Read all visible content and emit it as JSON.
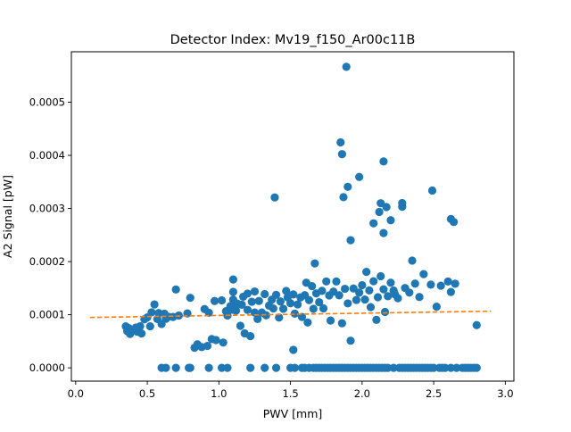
{
  "chart_data": {
    "type": "scatter",
    "title": "Detector Index: Mv19_f150_Ar00c11B",
    "xlabel": "PWV [mm]",
    "ylabel": "A2 Signal [pW]",
    "xlim": [
      -0.03,
      3.06
    ],
    "ylim": [
      -2.5e-05,
      0.000595
    ],
    "xticks": [
      0.0,
      0.5,
      1.0,
      1.5,
      2.0,
      2.5,
      3.0
    ],
    "xtick_labels": [
      "0.0",
      "0.5",
      "1.0",
      "1.5",
      "2.0",
      "2.5",
      "3.0"
    ],
    "yticks": [
      0.0,
      0.0001,
      0.0002,
      0.0003,
      0.0004,
      0.0005
    ],
    "ytick_labels": [
      "0.0000",
      "0.0001",
      "0.0002",
      "0.0003",
      "0.0004",
      "0.0005"
    ],
    "grid": false,
    "colors": {
      "points": "#1f77b4",
      "fit": "#ff7f0e"
    },
    "series": [
      {
        "kind": "points",
        "points": [
          [
            0.35,
            7.81e-05
          ],
          [
            0.36,
            6.91e-05
          ],
          [
            0.37,
            7.49e-05
          ],
          [
            0.38,
            6.39e-05
          ],
          [
            0.4,
            7.18e-05
          ],
          [
            0.42,
            7.58e-05
          ],
          [
            0.43,
            6.79e-05
          ],
          [
            0.45,
            7.84e-05
          ],
          [
            0.46,
            6.47e-05
          ],
          [
            0.48,
            9.14e-05
          ],
          [
            0.5,
            9.49e-05
          ],
          [
            0.52,
            7.82e-05
          ],
          [
            0.53,
            0.0001045
          ],
          [
            0.55,
            0.0001194
          ],
          [
            0.57,
            9.19e-05
          ],
          [
            0.58,
            0.0001032
          ],
          [
            0.6,
            8.26e-05
          ],
          [
            0.62,
            0.0001018
          ],
          [
            0.63,
            9.23e-05
          ],
          [
            0.65,
            9.61e-05
          ],
          [
            0.68,
            9.58e-05
          ],
          [
            0.7,
            0.0001475
          ],
          [
            0.72,
            9.86e-05
          ],
          [
            0.78,
            0.0001025
          ],
          [
            0.8,
            0.0001318
          ],
          [
            0.83,
            3.79e-05
          ],
          [
            0.85,
            4.44e-05
          ],
          [
            0.88,
            3.91e-05
          ],
          [
            0.9,
            0.0001107
          ],
          [
            0.92,
            4.13e-05
          ],
          [
            0.93,
            0.0001037
          ],
          [
            0.95,
            5.42e-05
          ],
          [
            0.97,
            0.0001258
          ],
          [
            0.98,
            5.23e-05
          ],
          [
            1.02,
            0.0001271
          ],
          [
            1.03,
            4.76e-05
          ],
          [
            1.05,
            0.0001067
          ],
          [
            1.06,
            9.86e-05
          ],
          [
            1.08,
            0.0001162
          ],
          [
            1.1,
            0.0001091
          ],
          [
            1.1,
            0.0001284
          ],
          [
            1.1,
            0.000143
          ],
          [
            1.1,
            0.0001664
          ],
          [
            1.12,
            0.0001077
          ],
          [
            1.13,
            0.0001208
          ],
          [
            1.15,
            7.92e-05
          ],
          [
            1.16,
            0.0001189
          ],
          [
            1.17,
            0.0001339
          ],
          [
            1.18,
            6.49e-05
          ],
          [
            1.2,
            0.0001091
          ],
          [
            1.2,
            0.0001398
          ],
          [
            1.22,
            5.96e-05
          ],
          [
            1.23,
            0.0001244
          ],
          [
            1.25,
            0.0001041
          ],
          [
            1.25,
            0.0001438
          ],
          [
            1.27,
            9.19e-05
          ],
          [
            1.28,
            0.0001259
          ],
          [
            1.3,
            0.0001041
          ],
          [
            1.32,
            0.0001389
          ],
          [
            1.33,
            9.89e-05
          ],
          [
            1.35,
            0.0001172
          ],
          [
            1.37,
            0.0001284
          ],
          [
            1.38,
            0.0001117
          ],
          [
            1.4,
            0.0001375
          ],
          [
            1.42,
            9.47e-05
          ],
          [
            1.43,
            0.000125
          ],
          [
            1.45,
            0.0001112
          ],
          [
            1.47,
            0.0001447
          ],
          [
            1.48,
            0.0001328
          ],
          [
            1.5,
            0.0001216
          ],
          [
            1.52,
            0.0001382
          ],
          [
            1.53,
            0.0001021
          ],
          [
            1.55,
            0.0001194
          ],
          [
            1.57,
            0.0001326
          ],
          [
            1.58,
            9.58e-05
          ],
          [
            1.6,
            0.0001367
          ],
          [
            1.61,
            0.0001603
          ],
          [
            1.62,
            8.54e-05
          ],
          [
            1.63,
            0.0001275
          ],
          [
            1.65,
            0.0001537
          ],
          [
            1.66,
            0.0001111
          ],
          [
            1.67,
            0.0001966
          ],
          [
            1.68,
            0.0001402
          ],
          [
            1.7,
            0.0001236
          ],
          [
            1.72,
            0.0001449
          ],
          [
            1.73,
            0.0001119
          ],
          [
            1.75,
            0.0001627
          ],
          [
            1.77,
            0.0001363
          ],
          [
            1.78,
            8.9e-05
          ],
          [
            1.8,
            0.0001434
          ],
          [
            1.82,
            0.0001626
          ],
          [
            1.84,
            0.0001365
          ],
          [
            1.86,
            8.39e-05
          ],
          [
            1.88,
            0.0001488
          ],
          [
            1.9,
            0.0001213
          ],
          [
            1.92,
            5.11e-05
          ],
          [
            1.94,
            0.0001494
          ],
          [
            1.96,
            0.0001278
          ],
          [
            1.98,
            0.0001416
          ],
          [
            2.0,
            0.0001557
          ],
          [
            2.02,
            0.0001286
          ],
          [
            2.03,
            0.0001806
          ],
          [
            2.05,
            0.0001457
          ],
          [
            2.06,
            0.0001142
          ],
          [
            2.08,
            0.0001631
          ],
          [
            2.1,
            9.04e-05
          ],
          [
            2.11,
            0.0001329
          ],
          [
            2.13,
            0.0001725
          ],
          [
            2.15,
            0.0001478
          ],
          [
            2.16,
            0.0001053
          ],
          [
            2.18,
            0.0001348
          ],
          [
            2.2,
            0.0001602
          ],
          [
            2.22,
            0.0001455
          ],
          [
            2.23,
            0.0001382
          ],
          [
            2.25,
            0.000131
          ],
          [
            2.3,
            0.0001503
          ],
          [
            2.33,
            0.0001417
          ],
          [
            2.35,
            0.0002019
          ],
          [
            2.37,
            0.0001586
          ],
          [
            2.4,
            0.0001334
          ],
          [
            2.43,
            0.0001764
          ],
          [
            2.48,
            0.0001567
          ],
          [
            2.52,
            0.0001151
          ],
          [
            2.55,
            0.0001546
          ],
          [
            2.6,
            0.0001625
          ],
          [
            2.62,
            0.0001428
          ],
          [
            2.65,
            0.0001583
          ],
          [
            2.8,
            8.04e-05
          ],
          [
            1.39,
            0.0003208
          ],
          [
            1.52,
            3.39e-05
          ],
          [
            1.85,
            0.0004244
          ],
          [
            1.86,
            0.0004023
          ],
          [
            1.87,
            0.0003213
          ],
          [
            1.89,
            0.0005666
          ],
          [
            1.9,
            0.0003408
          ],
          [
            1.92,
            0.0002403
          ],
          [
            1.98,
            0.0003594
          ],
          [
            2.08,
            0.0002721
          ],
          [
            2.12,
            0.0002935
          ],
          [
            2.13,
            0.0003099
          ],
          [
            2.15,
            0.0002537
          ],
          [
            2.15,
            0.0003885
          ],
          [
            2.17,
            0.0003026
          ],
          [
            2.2,
            0.0002779
          ],
          [
            2.28,
            0.0003102
          ],
          [
            2.28,
            0.0003032
          ],
          [
            2.49,
            0.0003338
          ],
          [
            2.62,
            0.0002802
          ],
          [
            2.64,
            0.0002746
          ],
          [
            0.6,
            0.0
          ],
          [
            0.63,
            0.0
          ],
          [
            0.7,
            0.0
          ],
          [
            0.79,
            0.0
          ],
          [
            0.8,
            0.0
          ],
          [
            0.93,
            0.0
          ],
          [
            1.02,
            0.0
          ],
          [
            1.06,
            0.0
          ],
          [
            1.22,
            0.0
          ],
          [
            1.32,
            0.0
          ],
          [
            1.4,
            0.0
          ],
          [
            1.5,
            0.0
          ],
          [
            1.53,
            0.0
          ],
          [
            1.58,
            0.0
          ],
          [
            1.6,
            0.0
          ],
          [
            1.63,
            0.0
          ],
          [
            1.66,
            0.0
          ],
          [
            1.68,
            0.0
          ],
          [
            1.7,
            0.0
          ],
          [
            1.72,
            0.0
          ],
          [
            1.74,
            0.0
          ],
          [
            1.76,
            0.0
          ],
          [
            1.78,
            0.0
          ],
          [
            1.8,
            0.0
          ],
          [
            1.82,
            0.0
          ],
          [
            1.84,
            0.0
          ],
          [
            1.86,
            0.0
          ],
          [
            1.88,
            0.0
          ],
          [
            1.9,
            0.0
          ],
          [
            1.92,
            0.0
          ],
          [
            1.94,
            0.0
          ],
          [
            1.96,
            0.0
          ],
          [
            1.98,
            0.0
          ],
          [
            2.0,
            0.0
          ],
          [
            2.02,
            0.0
          ],
          [
            2.04,
            0.0
          ],
          [
            2.06,
            0.0
          ],
          [
            2.08,
            0.0
          ],
          [
            2.1,
            0.0
          ],
          [
            2.12,
            0.0
          ],
          [
            2.14,
            0.0
          ],
          [
            2.16,
            0.0
          ],
          [
            2.18,
            0.0
          ],
          [
            2.22,
            0.0
          ],
          [
            2.26,
            0.0
          ],
          [
            2.28,
            0.0
          ],
          [
            2.3,
            0.0
          ],
          [
            2.32,
            0.0
          ],
          [
            2.34,
            0.0
          ],
          [
            2.36,
            0.0
          ],
          [
            2.38,
            0.0
          ],
          [
            2.4,
            0.0
          ],
          [
            2.42,
            0.0
          ],
          [
            2.44,
            0.0
          ],
          [
            2.46,
            0.0
          ],
          [
            2.48,
            0.0
          ],
          [
            2.5,
            0.0
          ],
          [
            2.54,
            0.0
          ],
          [
            2.56,
            0.0
          ],
          [
            2.58,
            0.0
          ],
          [
            2.62,
            0.0
          ],
          [
            2.66,
            0.0
          ],
          [
            2.7,
            0.0
          ],
          [
            2.72,
            0.0
          ],
          [
            2.74,
            0.0
          ],
          [
            2.76,
            0.0
          ],
          [
            2.78,
            0.0
          ],
          [
            2.8,
            0.0
          ]
        ]
      },
      {
        "kind": "fit-line",
        "style": "dashed",
        "x": [
          0.1,
          2.9
        ],
        "y": [
          9.49e-05,
          0.0001066
        ]
      }
    ]
  }
}
